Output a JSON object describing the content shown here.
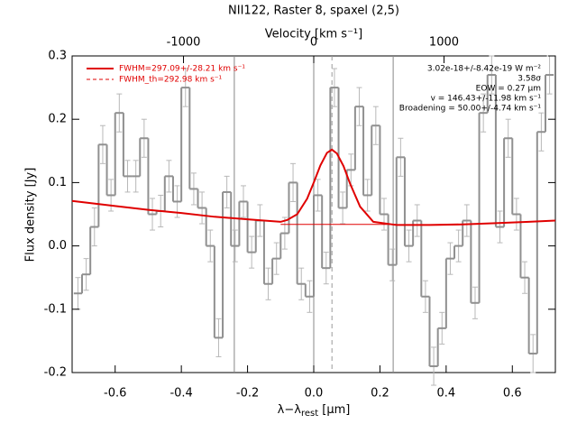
{
  "chart_data": {
    "type": "spectrum",
    "title": "NII122, Raster 8, spaxel (2,5)",
    "x2label": "Velocity [km s⁻¹]",
    "xlabel": {
      "main": "λ−λ",
      "sub": "rest",
      "unit": " [μm]"
    },
    "ylabel": "Flux density [Jy]",
    "xlim": [
      -0.73,
      0.73
    ],
    "xticks": [
      -0.6,
      -0.4,
      -0.2,
      {
        "value": 0,
        "label": "0.0"
      },
      0.2,
      0.4,
      0.6
    ],
    "x2lim": [
      -1855,
      1855
    ],
    "x2ticks": [
      -1000,
      0,
      1000
    ],
    "ylim": [
      -0.2,
      0.3
    ],
    "yticks": [
      -0.2,
      -0.1,
      {
        "value": 0,
        "label": "0.0"
      },
      0.1,
      0.2,
      0.3
    ],
    "spectrum": {
      "color": "#909090",
      "error_color": "#b8b8b8",
      "bins": [
        -0.725,
        -0.7,
        -0.675,
        -0.65,
        -0.625,
        -0.6,
        -0.575,
        -0.55,
        -0.525,
        -0.5,
        -0.475,
        -0.45,
        -0.425,
        -0.4,
        -0.375,
        -0.35,
        -0.325,
        -0.3,
        -0.275,
        -0.25,
        -0.225,
        -0.2,
        -0.175,
        -0.15,
        -0.125,
        -0.1,
        -0.075,
        -0.05,
        -0.025,
        0,
        0.025,
        0.05,
        0.075,
        0.1,
        0.125,
        0.15,
        0.175,
        0.2,
        0.225,
        0.25,
        0.275,
        0.3,
        0.325,
        0.35,
        0.375,
        0.4,
        0.425,
        0.45,
        0.475,
        0.5,
        0.525,
        0.55,
        0.575,
        0.6,
        0.625,
        0.65,
        0.675,
        0.7,
        0.725
      ],
      "values": [
        -0.075,
        -0.045,
        0.03,
        0.16,
        0.08,
        0.21,
        0.11,
        0.11,
        0.17,
        0.05,
        0.055,
        0.11,
        0.07,
        0.25,
        0.09,
        0.06,
        0.0,
        -0.145,
        0.085,
        0.0,
        0.07,
        -0.01,
        0.04,
        -0.06,
        -0.02,
        0.02,
        0.1,
        -0.06,
        -0.08,
        0.08,
        -0.035,
        0.25,
        0.06,
        0.12,
        0.22,
        0.08,
        0.19,
        0.05,
        -0.03,
        0.14,
        0.0,
        0.04,
        -0.08,
        -0.19,
        -0.13,
        -0.02,
        0.0,
        0.04,
        -0.09,
        0.21,
        0.27,
        0.03,
        0.17,
        0.05,
        -0.05,
        -0.17,
        0.18,
        0.27
      ],
      "errors": [
        0.025,
        0.025,
        0.03,
        0.03,
        0.025,
        0.03,
        0.025,
        0.025,
        0.03,
        0.025,
        0.025,
        0.025,
        0.025,
        0.03,
        0.025,
        0.025,
        0.025,
        0.03,
        0.025,
        0.025,
        0.025,
        0.025,
        0.025,
        0.025,
        0.025,
        0.025,
        0.03,
        0.025,
        0.025,
        0.025,
        0.025,
        0.03,
        0.025,
        0.025,
        0.03,
        0.025,
        0.03,
        0.025,
        0.025,
        0.03,
        0.025,
        0.025,
        0.025,
        0.03,
        0.025,
        0.025,
        0.025,
        0.025,
        0.025,
        0.03,
        0.03,
        0.025,
        0.03,
        0.025,
        0.025,
        0.03,
        0.03,
        0.03
      ]
    },
    "series": [
      {
        "name": "FWHM=297.09+/-28.21 km s⁻¹",
        "color": "#e00000",
        "style": "solid",
        "x": [
          -0.73,
          -0.6,
          -0.5,
          -0.4,
          -0.3,
          -0.2,
          -0.1,
          -0.08,
          -0.05,
          -0.02,
          0.0,
          0.02,
          0.04,
          0.055,
          0.07,
          0.09,
          0.11,
          0.14,
          0.18,
          0.25,
          0.35,
          0.45,
          0.55,
          0.65,
          0.73
        ],
        "values": [
          0.071,
          0.063,
          0.057,
          0.052,
          0.046,
          0.042,
          0.038,
          0.041,
          0.05,
          0.0745,
          0.1,
          0.127,
          0.147,
          0.152,
          0.146,
          0.126,
          0.098,
          0.062,
          0.038,
          0.033,
          0.033,
          0.034,
          0.036,
          0.038,
          0.04
        ]
      },
      {
        "name": "FWHM_th=292.98 km s⁻¹",
        "color": "#e00000",
        "style": "dashed",
        "x": [
          -0.1,
          0.25
        ],
        "values": [
          0.034,
          0.034
        ]
      }
    ],
    "vlines": [
      -0.24,
      0,
      0.24
    ],
    "center_line": 0.055,
    "annotations": [
      "3.02e-18+/-8.42e-19 W m⁻²",
      "3.58σ",
      "EOW = 0.27 μm",
      "v = 146.43+/-11.98 km s⁻¹",
      "Broadening = 50.00+/-4.74 km s⁻¹"
    ]
  }
}
